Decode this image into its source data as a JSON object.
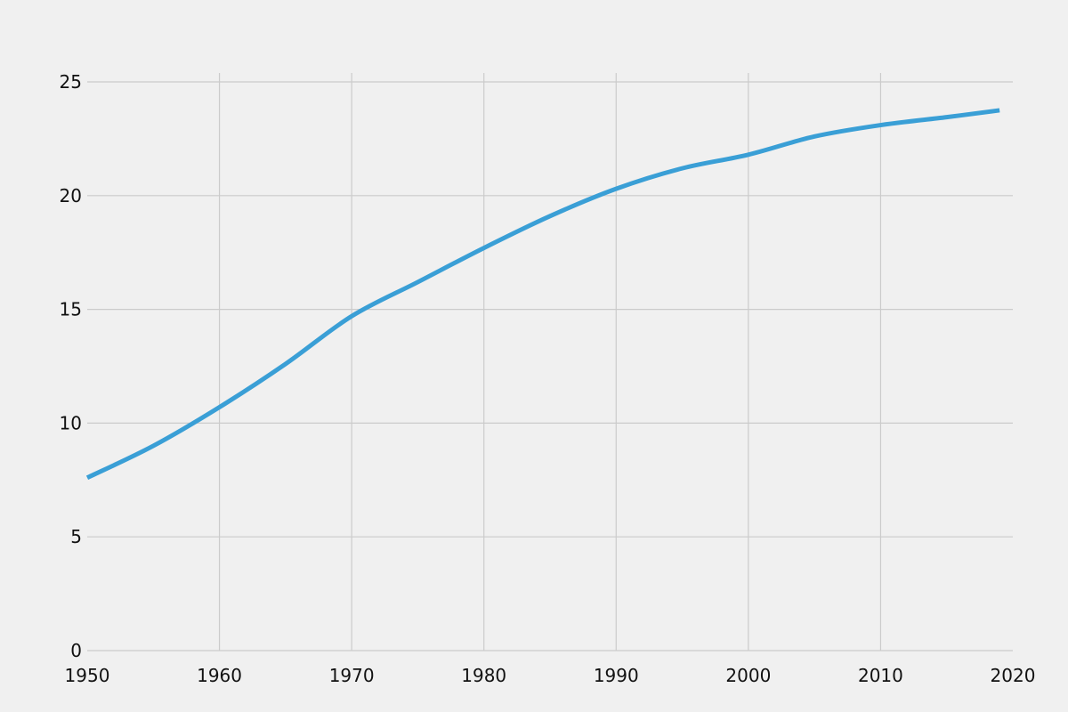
{
  "chart_data": {
    "type": "line",
    "title": "",
    "xlabel": "",
    "ylabel": "",
    "xlim": [
      1950,
      2020
    ],
    "ylim": [
      0,
      25
    ],
    "x_ticks": [
      1950,
      1960,
      1970,
      1980,
      1990,
      2000,
      2010,
      2020
    ],
    "y_ticks": [
      0,
      5,
      10,
      15,
      20,
      25
    ],
    "grid": true,
    "legend": "none",
    "series": [
      {
        "color": "#3a9fd6",
        "x": [
          1950,
          1955,
          1960,
          1965,
          1970,
          1975,
          1980,
          1985,
          1990,
          1995,
          2000,
          2005,
          2010,
          2015,
          2019
        ],
        "y": [
          7.6,
          9.0,
          10.7,
          12.6,
          14.7,
          16.2,
          17.7,
          19.1,
          20.3,
          21.2,
          21.8,
          22.6,
          23.1,
          23.45,
          23.75
        ]
      }
    ]
  }
}
